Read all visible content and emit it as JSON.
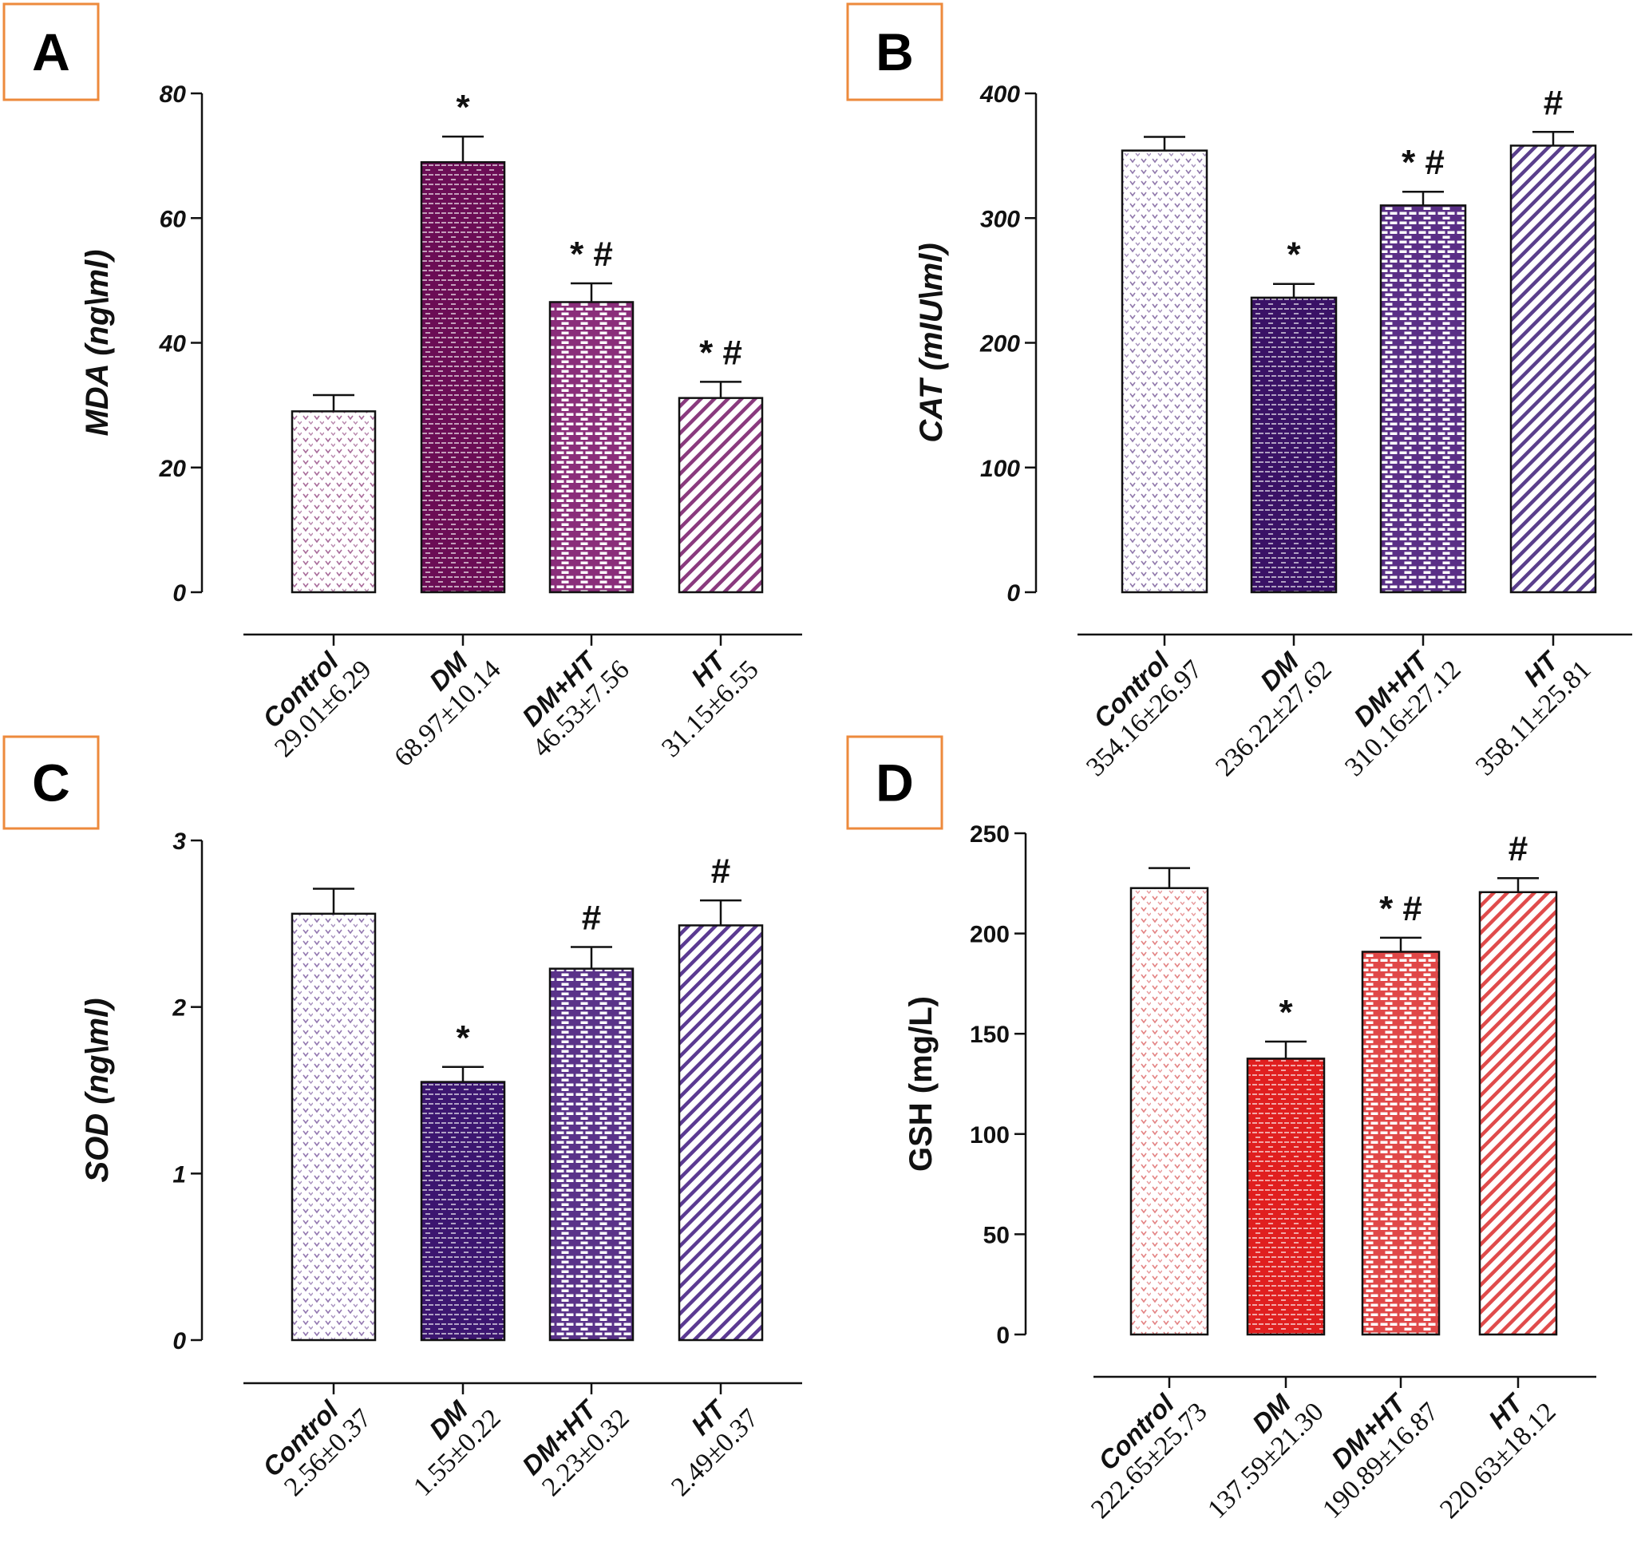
{
  "chart_data": [
    {
      "type": "bar",
      "panel": "A",
      "ylabel": "MDA (ng\\ml)",
      "ylim": [
        0,
        80
      ],
      "yticks": [
        "0",
        "20",
        "40",
        "60",
        "80"
      ],
      "categories": [
        "Control",
        "DM",
        "DM+HT",
        "HT"
      ],
      "category_labels": [
        "29.01±6.29",
        "68.97±10.14",
        "46.53±7.56",
        "31.15±6.55"
      ],
      "values": [
        29.01,
        68.97,
        46.53,
        31.15
      ],
      "errors": [
        2.6,
        4.1,
        3.0,
        2.6
      ],
      "significance": [
        "",
        "*",
        "* #",
        "* #"
      ],
      "colors": [
        "#8a3a78",
        "#6b0d55",
        "#8a2e7a",
        "#8a3a7e"
      ],
      "patterns": [
        "dots",
        "bricks-dark",
        "bricks",
        "diagonal"
      ]
    },
    {
      "type": "bar",
      "panel": "B",
      "ylabel": "CAT (mIU\\ml)",
      "ylim": [
        0,
        400
      ],
      "yticks": [
        "0",
        "100",
        "200",
        "300",
        "400"
      ],
      "categories": [
        "Control",
        "DM",
        "DM+HT",
        "HT"
      ],
      "category_labels": [
        "354.16±26.97",
        "236.22±27.62",
        "310.16±27.12",
        "358.11±25.81"
      ],
      "values": [
        354.16,
        236.22,
        310.16,
        358.11
      ],
      "errors": [
        11,
        11,
        11,
        11
      ],
      "significance": [
        "",
        "*",
        "* #",
        "#"
      ],
      "colors": [
        "#6a4a8f",
        "#3a1266",
        "#5a2f86",
        "#5a3f8c"
      ],
      "patterns": [
        "dots",
        "bricks-dark",
        "bricks",
        "diagonal"
      ]
    },
    {
      "type": "bar",
      "panel": "C",
      "ylabel": "SOD (ng\\ml)",
      "ylim": [
        0,
        3
      ],
      "yticks": [
        "0",
        "1",
        "2",
        "3"
      ],
      "categories": [
        "Control",
        "DM",
        "DM+HT",
        "HT"
      ],
      "category_labels": [
        "2.56±0.37",
        "1.55±0.22",
        "2.23±0.32",
        "2.49±0.37"
      ],
      "values": [
        2.56,
        1.55,
        2.23,
        2.49
      ],
      "errors": [
        0.15,
        0.09,
        0.13,
        0.15
      ],
      "significance": [
        "",
        "*",
        "#",
        "#"
      ],
      "colors": [
        "#6e4a95",
        "#3c1670",
        "#5a3389",
        "#5b3a92"
      ],
      "patterns": [
        "dots",
        "bricks-dark",
        "bricks",
        "diagonal"
      ]
    },
    {
      "type": "bar",
      "panel": "D",
      "ylabel": "GSH (mg/L)",
      "ylim": [
        0,
        250
      ],
      "yticks": [
        "0",
        "50",
        "100",
        "150",
        "200",
        "250"
      ],
      "categories": [
        "Control",
        "DM",
        "DM+HT",
        "HT"
      ],
      "category_labels": [
        "222.65±25.73",
        "137.59±21.30",
        "190.89±16.87",
        "220.63±18.12"
      ],
      "values": [
        222.65,
        137.59,
        190.89,
        220.63
      ],
      "errors": [
        10,
        8.5,
        7,
        7
      ],
      "significance": [
        "",
        "*",
        "* #",
        "#"
      ],
      "colors": [
        "#d9595b",
        "#e01f1f",
        "#e04848",
        "#e04b4b"
      ],
      "patterns": [
        "dots",
        "bricks-dark",
        "bricks",
        "diagonal"
      ]
    }
  ]
}
